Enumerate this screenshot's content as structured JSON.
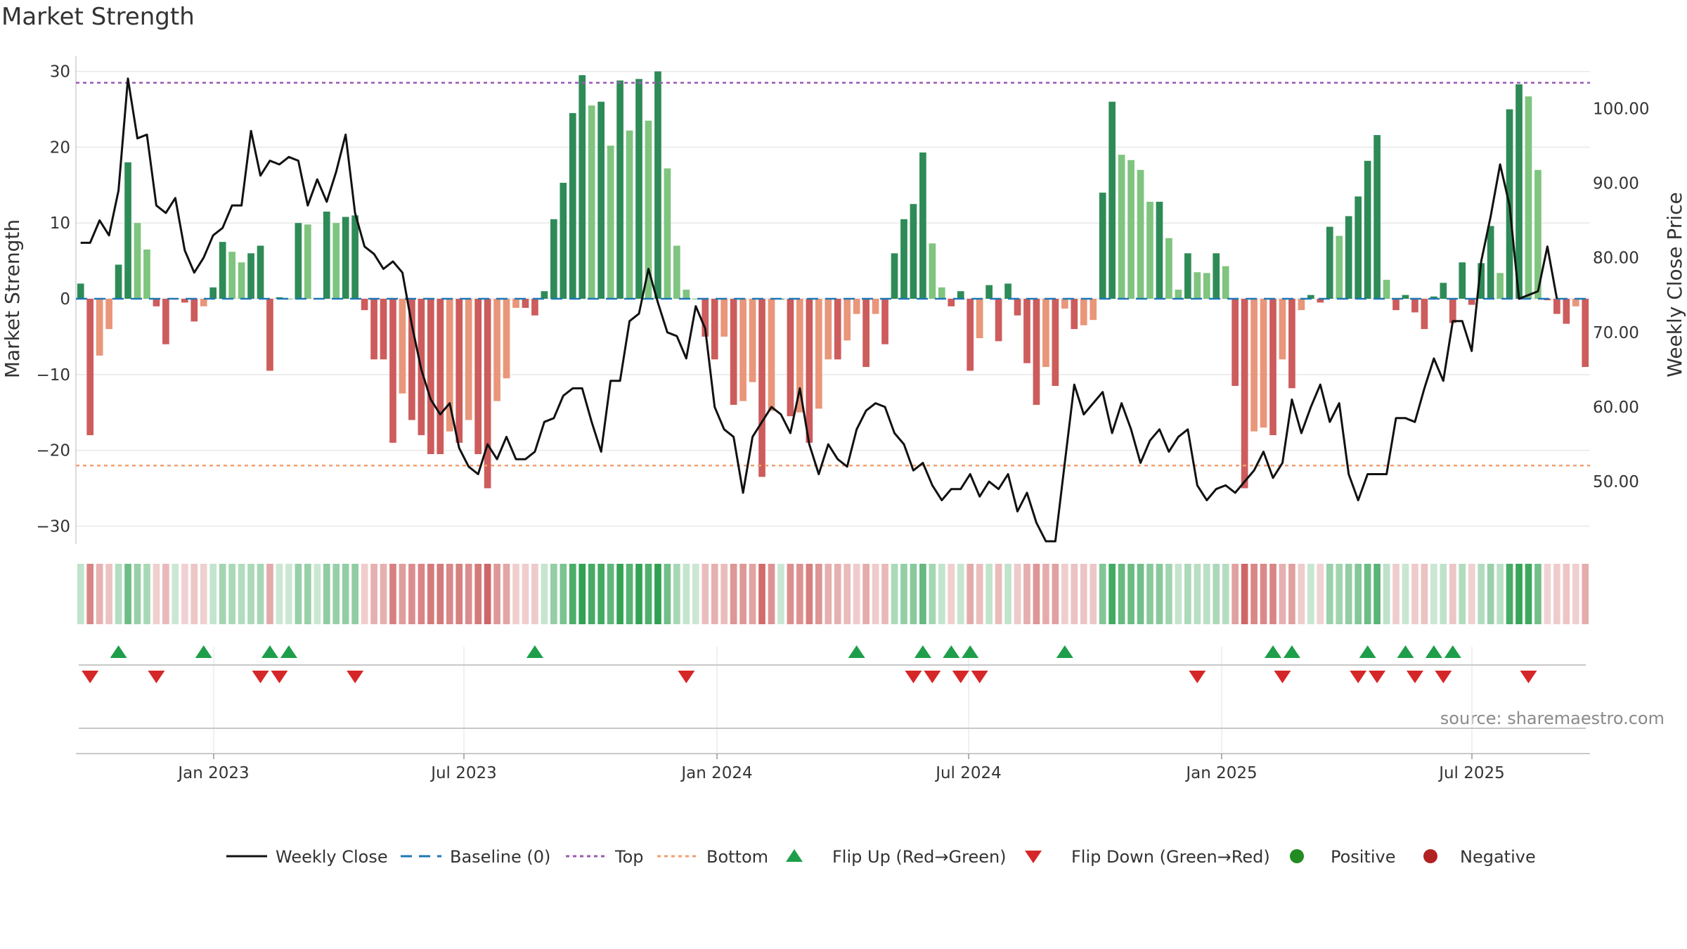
{
  "title": "Market Strength",
  "source": "source: sharemaestro.com",
  "colors": {
    "pos_strong": "#2e8b57",
    "pos_weak": "#7fc47f",
    "neg_strong": "#cd5c5c",
    "neg_weak": "#e9967a",
    "line": "#111111",
    "top": "#9b59b6",
    "bottom": "#f0a070",
    "baseline": "#1f77b4",
    "flip_up": "#1e9e4a",
    "flip_down": "#d62728"
  },
  "chart_data": {
    "type": "bar",
    "title": "Market Strength",
    "ylabel": "Market Strength",
    "y2label": "Weekly Close Price",
    "ylim": [
      -32,
      32
    ],
    "y2lim": [
      42,
      107
    ],
    "yticks": [
      -30,
      -20,
      -10,
      0,
      10,
      20,
      30
    ],
    "y2ticks": [
      "50.00",
      "60.00",
      "70.00",
      "80.00",
      "90.00",
      "100.00"
    ],
    "xticks": [
      "Jan 2023",
      "Jul 2023",
      "Jan 2024",
      "Jul 2024",
      "Jan 2025",
      "Jul 2025"
    ],
    "top_line": 28.5,
    "bottom_line": -22,
    "strength": [
      2,
      -18,
      -7.5,
      -4,
      4.5,
      18,
      10,
      6.5,
      -1,
      -6,
      0,
      -0.5,
      -3,
      -1,
      1.5,
      7.5,
      6.2,
      4.8,
      6,
      7,
      -9.5,
      0.2,
      0,
      10,
      9.8,
      0,
      11.5,
      10,
      10.8,
      11,
      -1.5,
      -8,
      -8,
      -19,
      -12.5,
      -16,
      -18,
      -20.5,
      -20.5,
      -17.5,
      -19,
      -16,
      -20.5,
      -25,
      -13.5,
      -10.5,
      -1.2,
      -1.2,
      -2.2,
      1,
      10.5,
      15.3,
      24.5,
      29.5,
      25.5,
      26,
      20.2,
      28.8,
      22.2,
      29,
      23.5,
      30,
      17.2,
      7,
      1.2,
      0,
      -5,
      -8,
      -5,
      -14,
      -13.5,
      -11,
      -23.5,
      -14.8,
      0,
      -15.5,
      -15,
      -19,
      -14.5,
      -8,
      -8,
      -5.5,
      -2,
      -9,
      -2,
      -6,
      6,
      10.5,
      12.5,
      19.3,
      7.3,
      1.5,
      -1,
      1,
      -9.5,
      -5.2,
      1.8,
      -5.6,
      2,
      -2.2,
      -8.5,
      -14,
      -9,
      -11.5,
      -1.3,
      -4,
      -3.5,
      -2.8,
      14,
      26,
      19,
      18.3,
      17,
      12.8,
      12.8,
      8,
      1.2,
      6,
      3.5,
      3.4,
      6,
      4.3,
      -11.5,
      -25,
      -17.5,
      -17,
      -18,
      -8,
      -11.8,
      -1.5,
      0.5,
      -0.5,
      9.5,
      8.3,
      10.9,
      13.5,
      18.2,
      21.6,
      2.5,
      -1.5,
      0.5,
      -1.8,
      -4,
      0.3,
      2.1,
      -3.2,
      4.8,
      -0.8,
      4.7,
      9.6,
      3.4,
      25,
      28.3,
      26.7,
      17,
      -0.2,
      -2,
      -3.3,
      -1,
      -9
    ],
    "close": [
      82,
      82,
      85,
      83,
      89,
      104,
      96,
      96.5,
      87,
      86,
      88,
      81,
      78,
      80,
      83,
      84,
      87,
      87,
      97,
      91,
      93,
      92.5,
      93.5,
      93,
      87,
      90.5,
      87.5,
      91.5,
      96.5,
      86,
      81.5,
      80.5,
      78.5,
      79.5,
      78,
      71,
      65,
      61,
      59,
      60.5,
      54.5,
      52,
      51,
      55,
      53,
      56,
      53,
      53,
      54,
      58,
      58.5,
      61.5,
      62.5,
      62.5,
      58,
      54,
      63.5,
      63.5,
      71.5,
      72.5,
      78.5,
      74,
      70,
      69.5,
      66.5,
      73.5,
      70.5,
      60,
      57,
      56,
      48.5,
      56,
      58,
      60,
      59,
      56.5,
      62.5,
      55,
      51,
      55,
      53,
      52,
      57,
      59.5,
      60.5,
      60,
      56.5,
      55,
      51.5,
      52.5,
      49.5,
      47.5,
      49,
      49,
      51,
      48,
      50,
      49,
      51,
      46,
      48.5,
      44.5,
      42,
      42,
      52.5,
      63,
      59,
      60.5,
      62,
      56.5,
      60.5,
      57,
      52.5,
      55.5,
      57,
      54,
      56,
      57,
      49.5,
      47.5,
      49,
      49.5,
      48.5,
      50,
      51.5,
      54,
      50.5,
      52.5,
      61,
      56.5,
      60,
      63,
      58,
      60.5,
      51,
      47.5,
      51,
      51,
      51,
      58.5,
      58.5,
      58,
      62.5,
      66.5,
      63.5,
      71.5,
      71.5,
      67.5,
      79.5,
      85.5,
      92.5,
      87,
      74.5,
      75,
      75.5,
      81.5,
      74.5
    ],
    "flip_up_idx": [
      4,
      13,
      20,
      22,
      48,
      82,
      89,
      92,
      94,
      104,
      126,
      128,
      136,
      140,
      143,
      145
    ],
    "flip_down_idx": [
      1,
      8,
      19,
      21,
      29,
      64,
      88,
      90,
      93,
      95,
      118,
      127,
      135,
      137,
      141,
      144,
      153
    ],
    "legend": [
      "Weekly Close",
      "Baseline (0)",
      "Top",
      "Bottom",
      "Flip Up (Red→Green)",
      "Flip Down (Green→Red)",
      "Positive",
      "Negative"
    ]
  }
}
